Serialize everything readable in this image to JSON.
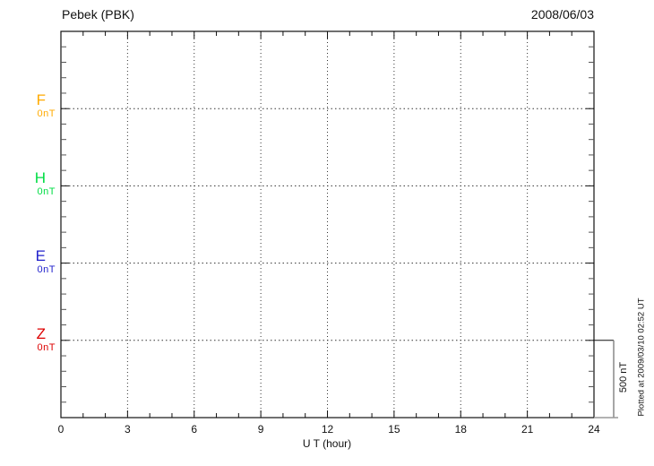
{
  "header": {
    "title": "Pebek (PBK)",
    "date": "2008/06/03"
  },
  "axis": {
    "xlabel": "U T (hour)"
  },
  "scale_bar": {
    "label": "500 nT"
  },
  "footnote": {
    "plotted_at": "Plotted at 2009/03/10 02:52 UT"
  },
  "chart_data": {
    "type": "line",
    "title": "Pebek (PBK)",
    "date": "2008/06/03",
    "xlabel": "U T (hour)",
    "xlim": [
      0,
      24
    ],
    "x_major_ticks": [
      0,
      3,
      6,
      9,
      12,
      15,
      18,
      21,
      24
    ],
    "x_minor_tick_step_hours": 1,
    "y_divisions_total": 25,
    "y_nT_per_minor_division": 100,
    "scale_bar_nT": 500,
    "scale_bar_label": "500 nT",
    "grid": "dotted vertical lines every 3 hours, dotted horizontal line at each component baseline",
    "legend_position": "left margin",
    "series": [
      {
        "name": "F",
        "baseline_label": "0nT",
        "baseline_division": 5,
        "color": "#FFAA00",
        "x": [],
        "values": []
      },
      {
        "name": "H",
        "baseline_label": "0nT",
        "baseline_division": 10,
        "color": "#00DD44",
        "x": [],
        "values": []
      },
      {
        "name": "E",
        "baseline_label": "0nT",
        "baseline_division": 15,
        "color": "#2222CC",
        "x": [],
        "values": []
      },
      {
        "name": "Z",
        "baseline_label": "0nT",
        "baseline_division": 20,
        "color": "#DD0000",
        "x": [],
        "values": []
      }
    ],
    "plotted_at": "Plotted at 2009/03/10 02:52 UT"
  }
}
